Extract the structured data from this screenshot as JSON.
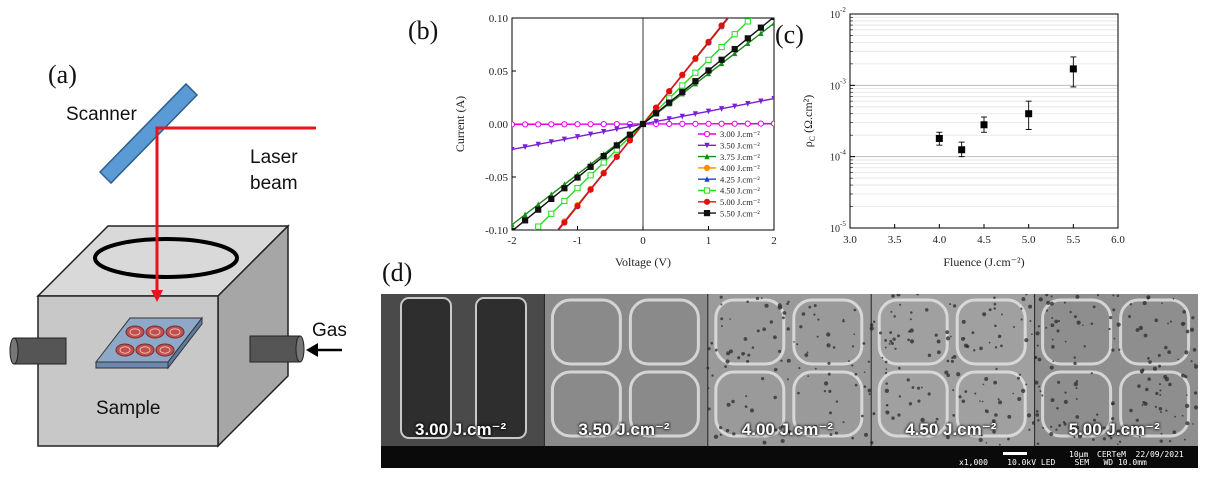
{
  "panels": {
    "a": "(a)",
    "b": "(b)",
    "c": "(c)",
    "d": "(d)"
  },
  "schematic": {
    "scanner": "Scanner",
    "laser_line1": "Laser",
    "laser_line2": "beam",
    "sample": "Sample",
    "gas": "Gas",
    "colors": {
      "beam": "#e8141b",
      "scanner": "#5b9bd5",
      "box_front": "#c8c8c8",
      "box_top": "#d9d9d9",
      "box_side": "#a6a6a6",
      "sample_plate": "#8ea9c8",
      "spot": "#c0504d"
    }
  },
  "chart_data": [
    {
      "type": "line",
      "panel": "(b)",
      "xlabel": "Voltage (V)",
      "ylabel": "Current (A)",
      "xlim": [
        -2,
        2
      ],
      "ylim": [
        -0.1,
        0.1
      ],
      "xticks": [
        -2,
        -1,
        0,
        1,
        2
      ],
      "xtick_labels": [
        "-2",
        "-1",
        "0",
        "1",
        "2"
      ],
      "yticks": [
        -0.1,
        -0.05,
        0.0,
        0.05,
        0.1
      ],
      "ytick_labels": [
        "-0.10",
        "-0.05",
        "0.00",
        "0.05",
        "0.10"
      ],
      "legend_position": "bottom-right",
      "x": [
        -2.0,
        -1.8,
        -1.6,
        -1.4,
        -1.2,
        -1.0,
        -0.8,
        -0.6,
        -0.4,
        -0.2,
        0.0,
        0.2,
        0.4,
        0.6,
        0.8,
        1.0,
        1.2,
        1.4,
        1.6,
        1.8,
        2.0
      ],
      "series": [
        {
          "name": "3.00 J.cm⁻²",
          "color": "#e600e6",
          "marker": "circle-open",
          "slope": 0.0002
        },
        {
          "name": "3.50 J.cm⁻²",
          "color": "#7a1fd6",
          "marker": "triangle-down",
          "slope": 0.012
        },
        {
          "name": "3.75 J.cm⁻²",
          "color": "#1a8a1a",
          "marker": "triangle-up",
          "slope": 0.0475
        },
        {
          "name": "4.00 J.cm⁻²",
          "color": "#ff8c00",
          "marker": "circle",
          "slope": 0.0765
        },
        {
          "name": "4.25 J.cm⁻²",
          "color": "#1c3fd6",
          "marker": "triangle-up",
          "slope": 0.077
        },
        {
          "name": "4.50 J.cm⁻²",
          "color": "#22dd22",
          "marker": "square-open",
          "slope": 0.0605
        },
        {
          "name": "5.00 J.cm⁻²",
          "color": "#e01010",
          "marker": "circle",
          "slope": 0.0775
        },
        {
          "name": "5.50 J.cm⁻²",
          "color": "#111111",
          "marker": "square",
          "slope": 0.0505
        }
      ]
    },
    {
      "type": "scatter",
      "panel": "(c)",
      "xlabel": "Fluence (J.cm⁻²)",
      "ylabel": "ρC (Ω.cm²)",
      "ylabel_main": "ρ",
      "ylabel_sub": "C",
      "ylabel_rest": " (Ω.cm²)",
      "xlim": [
        3.0,
        6.0
      ],
      "ylim": [
        1e-05,
        0.01
      ],
      "yscale": "log",
      "grid": true,
      "xticks": [
        3.0,
        3.5,
        4.0,
        4.5,
        5.0,
        5.5,
        6.0
      ],
      "xtick_labels": [
        "3.0",
        "3.5",
        "4.0",
        "4.5",
        "5.0",
        "5.5",
        "6.0"
      ],
      "ytick_exponents": [
        -5,
        -4,
        -3,
        -2
      ],
      "x": [
        4.0,
        4.25,
        4.5,
        5.0,
        5.5
      ],
      "y": [
        0.00018,
        0.000125,
        0.00028,
        0.0004,
        0.0017
      ],
      "y_err_low": [
        0.000145,
        0.0001,
        0.00022,
        0.00024,
        0.00095
      ],
      "y_err_high": [
        0.00022,
        0.00016,
        0.00036,
        0.0006,
        0.0025
      ]
    }
  ],
  "sem": {
    "captions": [
      "3.00 J.cm⁻²",
      "3.50 J.cm⁻²",
      "4.00 J.cm⁻²",
      "4.50 J.cm⁻²",
      "5.00 J.cm⁻²"
    ],
    "scale": "10μm",
    "info_top": "CERTeM  22/09/2021",
    "info_bottom": "x1,000    10.0kV LED    SEM   WD 10.0mm"
  }
}
